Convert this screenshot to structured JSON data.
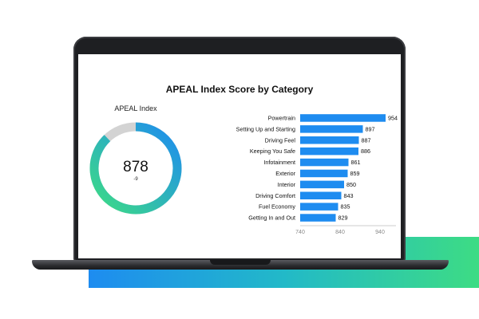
{
  "chart_data": [
    {
      "type": "donut",
      "title": "APEAL Index",
      "value": 878,
      "delta": "-9",
      "fill_fraction": 0.88,
      "colors": {
        "start": "#3ddc84",
        "end": "#1e8cf0",
        "remainder": "#d3d3d3"
      }
    },
    {
      "type": "bar",
      "orientation": "horizontal",
      "title": "APEAL Index Score by Category",
      "categories": [
        "Powertrain",
        "Setting Up and Starting",
        "Driving Feel",
        "Keeping You Safe",
        "Infotainment",
        "Exterior",
        "Interior",
        "Driving Comfort",
        "Fuel Economy",
        "Getting In and Out"
      ],
      "values": [
        954,
        897,
        887,
        886,
        861,
        859,
        850,
        843,
        835,
        829
      ],
      "xlim": [
        740,
        980
      ],
      "xticks": [
        740,
        840,
        940
      ],
      "xtick_labels": [
        "740",
        "840",
        "940"
      ],
      "bar_color": "#1e8cf0",
      "grid": false
    }
  ]
}
